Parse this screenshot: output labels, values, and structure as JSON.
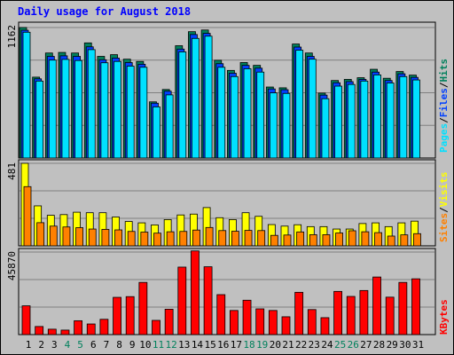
{
  "title": "Daily usage for August 2018",
  "colors": {
    "background": "#c0c0c0",
    "plot_bg": "#c0c0c0",
    "title": "#0000ff",
    "hits": "#00805c",
    "files": "#0040ff",
    "pages": "#00e0ff",
    "visits": "#ffff00",
    "sites": "#ff8000",
    "kbytes": "#ff0000",
    "weekend_label": "#00805c",
    "weekday_label": "#000000"
  },
  "chart_data": [
    {
      "type": "bar",
      "name": "hits-files-pages",
      "categories": [
        "1",
        "2",
        "3",
        "4",
        "5",
        "6",
        "7",
        "8",
        "9",
        "10",
        "11",
        "12",
        "13",
        "14",
        "15",
        "16",
        "17",
        "18",
        "19",
        "20",
        "21",
        "22",
        "23",
        "24",
        "25",
        "26",
        "27",
        "28",
        "29",
        "30",
        "31"
      ],
      "ymax_label": "1162",
      "ylim": [
        0,
        1162
      ],
      "legend": [
        "Pages",
        "/",
        "Files",
        "/",
        "Hits"
      ],
      "series": [
        {
          "name": "Hits",
          "values": [
            1162,
            720,
            935,
            940,
            935,
            1025,
            905,
            920,
            880,
            860,
            500,
            610,
            1000,
            1125,
            1140,
            870,
            780,
            850,
            825,
            632,
            625,
            1015,
            935,
            578,
            690,
            700,
            715,
            790,
            710,
            770,
            738
          ]
        },
        {
          "name": "Files",
          "values": [
            1138,
            705,
            905,
            910,
            905,
            990,
            875,
            890,
            850,
            835,
            488,
            595,
            970,
            1100,
            1110,
            840,
            755,
            825,
            800,
            615,
            608,
            988,
            905,
            560,
            670,
            680,
            700,
            765,
            690,
            750,
            718
          ]
        },
        {
          "name": "Pages",
          "values": [
            1120,
            685,
            872,
            878,
            868,
            965,
            848,
            860,
            818,
            808,
            455,
            562,
            945,
            1065,
            1085,
            808,
            725,
            795,
            765,
            580,
            575,
            960,
            880,
            528,
            640,
            655,
            685,
            740,
            668,
            725,
            695
          ]
        }
      ]
    },
    {
      "type": "bar",
      "name": "visits-sites",
      "categories": [
        "1",
        "2",
        "3",
        "4",
        "5",
        "6",
        "7",
        "8",
        "9",
        "10",
        "11",
        "12",
        "13",
        "14",
        "15",
        "16",
        "17",
        "18",
        "19",
        "20",
        "21",
        "22",
        "23",
        "24",
        "25",
        "26",
        "27",
        "28",
        "29",
        "30",
        "31"
      ],
      "ymax_label": "481",
      "ylim": [
        0,
        481
      ],
      "legend": [
        "Sites",
        "/",
        "Visits"
      ],
      "series": [
        {
          "name": "Visits",
          "values": [
            481,
            233,
            178,
            182,
            196,
            193,
            193,
            168,
            142,
            134,
            122,
            153,
            180,
            185,
            223,
            164,
            153,
            193,
            172,
            124,
            115,
            123,
            112,
            112,
            98,
            98,
            130,
            134,
            112,
            134,
            144
          ]
        },
        {
          "name": "Sites",
          "values": [
            345,
            135,
            115,
            110,
            106,
            98,
            96,
            93,
            84,
            80,
            74,
            82,
            84,
            92,
            107,
            89,
            85,
            90,
            89,
            61,
            63,
            81,
            65,
            65,
            75,
            88,
            82,
            77,
            57,
            64,
            71
          ]
        }
      ]
    },
    {
      "type": "bar",
      "name": "kbytes",
      "categories": [
        "1",
        "2",
        "3",
        "4",
        "5",
        "6",
        "7",
        "8",
        "9",
        "10",
        "11",
        "12",
        "13",
        "14",
        "15",
        "16",
        "17",
        "18",
        "19",
        "20",
        "21",
        "22",
        "23",
        "24",
        "25",
        "26",
        "27",
        "28",
        "29",
        "30",
        "31"
      ],
      "ymax_label": "45870",
      "ylim": [
        0,
        45870
      ],
      "legend": [
        "KBytes"
      ],
      "series": [
        {
          "name": "KBytes",
          "values": [
            16000,
            4500,
            3000,
            2500,
            7700,
            5900,
            8500,
            20700,
            21100,
            29000,
            7900,
            14100,
            37500,
            46500,
            37700,
            22200,
            13400,
            19100,
            14300,
            13400,
            9900,
            23500,
            13900,
            9400,
            24000,
            21200,
            24500,
            32000,
            20800,
            29000,
            31000
          ]
        }
      ]
    }
  ]
}
